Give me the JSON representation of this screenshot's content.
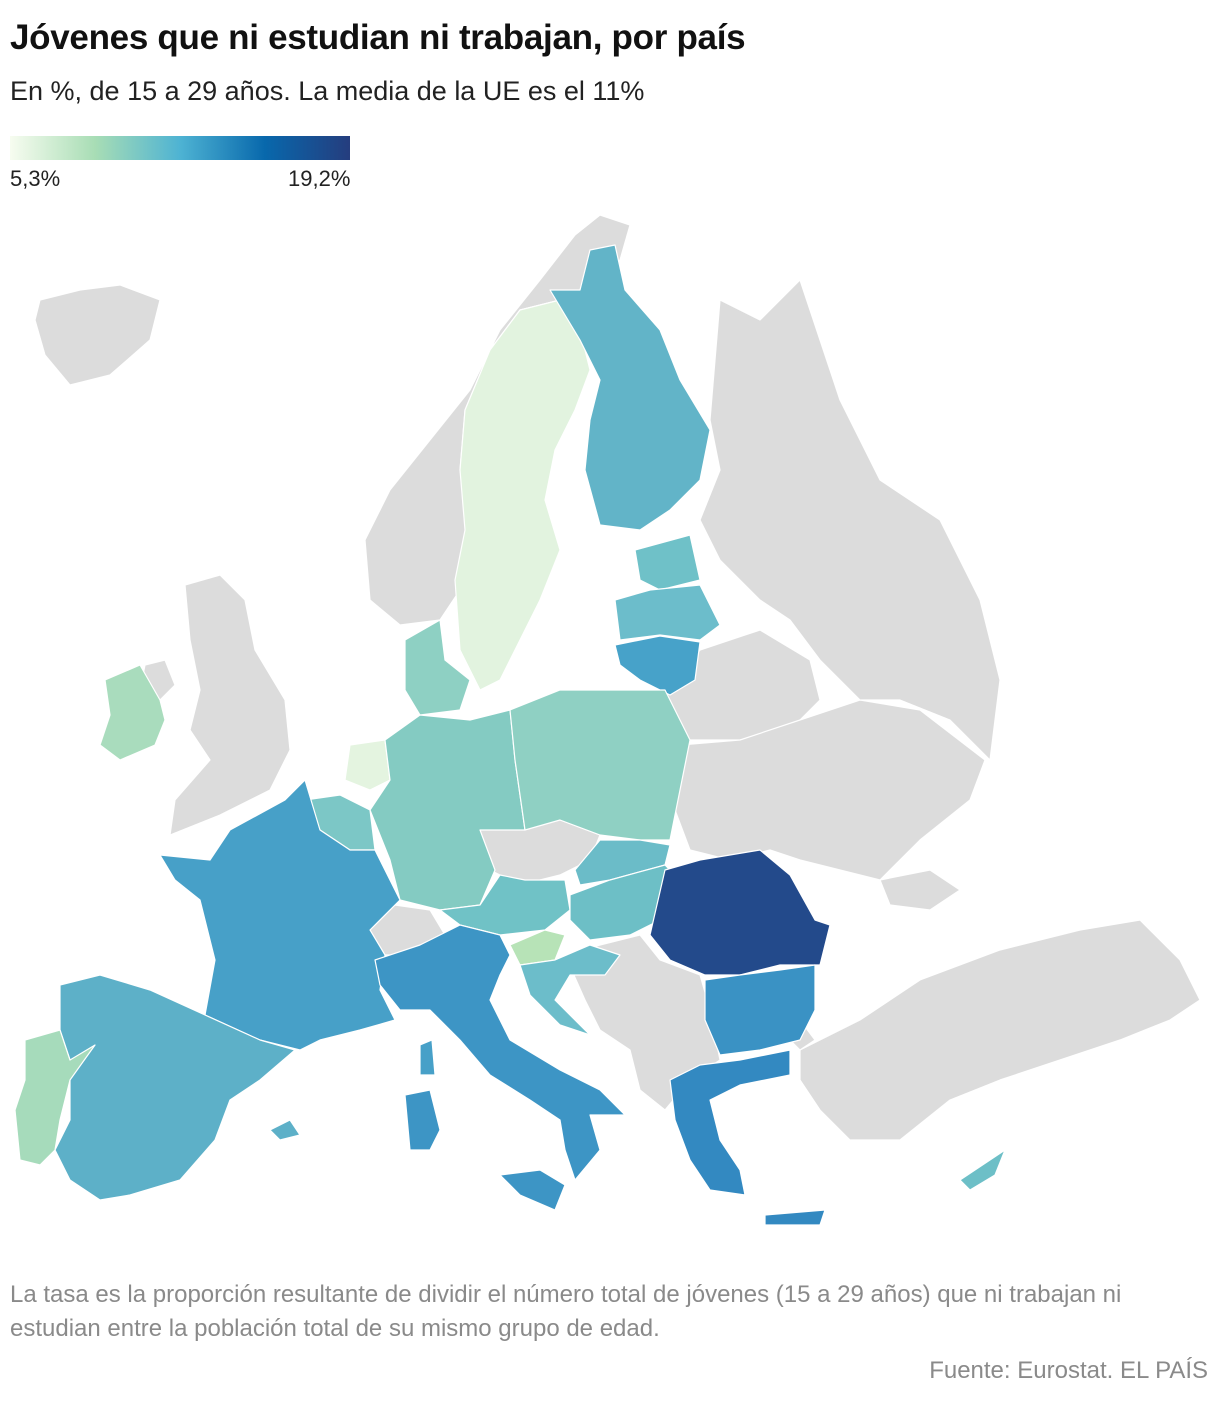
{
  "header": {
    "title": "Jóvenes que ni estudian ni trabajan, por país",
    "subtitle": "En %, de 15 a 29 años. La media de la UE es el 11%"
  },
  "legend": {
    "colors": [
      "#f7fcf0",
      "#a8ddb5",
      "#4eb3d3",
      "#0868ac",
      "#253d7e"
    ],
    "ticks": [
      {
        "value": 5.3,
        "label": "5,3%"
      },
      {
        "value": 19.2,
        "label": "19,2%"
      }
    ]
  },
  "footer": {
    "note": "La tasa es la proporción resultante de dividir el número total de jóvenes (15 a 29 años) que ni trabajan ni estudian entre la población total de su mismo grupo de edad.",
    "source": "Fuente: Eurostat. EL PAÍS"
  }
}
